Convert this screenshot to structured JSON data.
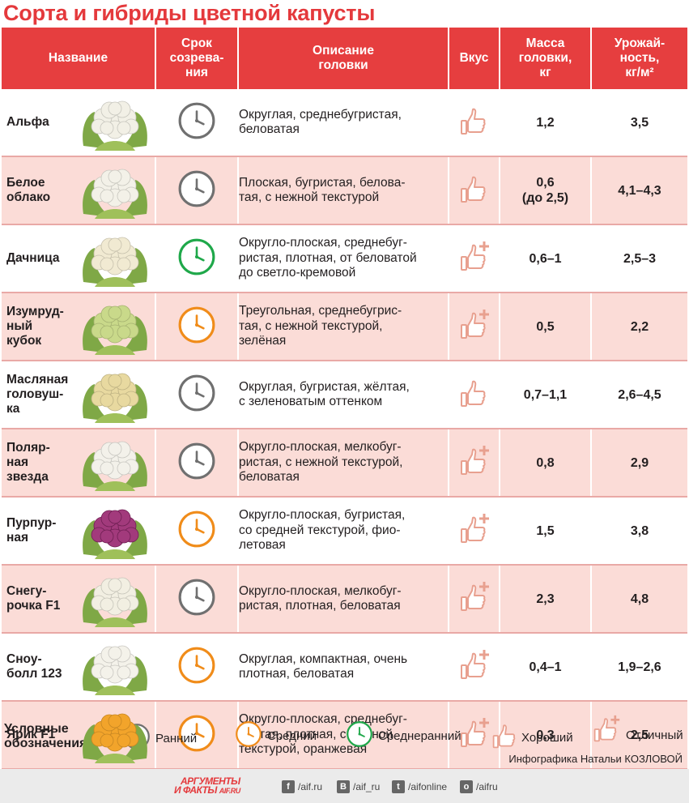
{
  "title": "Сорта и гибриды цветной капусты",
  "headers": {
    "name": "Название",
    "period": "Срок\nсозрева-\nния",
    "desc": "Описание\nголовки",
    "taste": "Вкус",
    "mass": "Масса\nголовки,\nкг",
    "yield": "Урожай-\nность,\nкг/м²"
  },
  "rows": [
    {
      "name": "Альфа",
      "period": "ранний",
      "desc": "Округлая, среднебугристая,\nбеловатая",
      "taste": "хороший",
      "mass": "1,2",
      "yield": "3,5",
      "head_color": "#f2f0e6"
    },
    {
      "name": "Белое\nоблако",
      "period": "ранний",
      "desc": "Плоская, бугристая, белова-\nтая, с нежной текстурой",
      "taste": "хороший",
      "mass": "0,6\n(до 2,5)",
      "yield": "4,1–4,3",
      "head_color": "#f3f1e8"
    },
    {
      "name": "Дачница",
      "period": "среднеранний",
      "desc": "Округло-плоская, среднебуг-\nристая, плотная, от беловатой\nдо светло-кремовой",
      "taste": "отличный",
      "mass": "0,6–1",
      "yield": "2,5–3",
      "head_color": "#f1ead2"
    },
    {
      "name": "Изумруд-\nный\nкубок",
      "period": "средний",
      "desc": "Треугольная, среднебугрис-\nтая, с нежной текстурой,\nзелёная",
      "taste": "отличный",
      "mass": "0,5",
      "yield": "2,2",
      "head_color": "#c9d98a"
    },
    {
      "name": "Масляная\nголовуш-\nка",
      "period": "ранний",
      "desc": "Округлая, бугристая, жёлтая,\nс зеленоватым оттенком",
      "taste": "хороший",
      "mass": "0,7–1,1",
      "yield": "2,6–4,5",
      "head_color": "#e8d9a0"
    },
    {
      "name": "Поляр-\nная\nзвезда",
      "period": "ранний",
      "desc": "Округло-плоская, мелкобуг-\nристая, с нежной текстурой,\nбеловатая",
      "taste": "отличный",
      "mass": "0,8",
      "yield": "2,9",
      "head_color": "#f3f1ea"
    },
    {
      "name": "Пурпур-\nная",
      "period": "средний",
      "desc": "Округло-плоская, бугристая,\nсо средней текстурой, фио-\nлетовая",
      "taste": "отличный",
      "mass": "1,5",
      "yield": "3,8",
      "head_color": "#8c2a6a"
    },
    {
      "name": "Снегу-\nрочка F1",
      "period": "ранний",
      "desc": "Округло-плоская, мелкобуг-\nристая, плотная, беловатая",
      "taste": "отличный",
      "mass": "2,3",
      "yield": "4,8",
      "head_color": "#f2efe2"
    },
    {
      "name": "Сноу-\nболл 123",
      "period": "средний",
      "desc": "Округлая, компактная, очень\nплотная, беловатая",
      "taste": "отличный",
      "mass": "0,4–1",
      "yield": "1,9–2,6",
      "head_color": "#f4f2ea"
    },
    {
      "name": "Ярик F1",
      "period": "средний",
      "desc": "Округло-плоская, среднебуг-\nристая, плотная, с нежной\nтекстурой, оранжевая",
      "taste": "отличный",
      "mass": "0,3",
      "yield": "2,5",
      "head_color": "#f2a42b"
    }
  ],
  "legend": {
    "title": "Условные\nобозначения",
    "early": "Ранний",
    "medium": "Средний",
    "medium_early": "Среднеранний",
    "good": "Хороший",
    "excellent": "Отличный"
  },
  "colors": {
    "accent": "#e63e3f",
    "row_alt": "#fbdcd7",
    "clock_early": "#707070",
    "clock_medium": "#f08c1a",
    "clock_medium_early": "#1fa84a",
    "thumb": "#e8a08f",
    "leaf": "#7fa846"
  },
  "credit": "Инфографика Натальи КОЗЛОВОЙ",
  "footer": {
    "brand_top": "АРГУМЕНТЫ",
    "brand_bottom": "И ФАКТЫ",
    "brand_domain": "AIF.RU",
    "social": [
      {
        "icon": "f",
        "label": "/aif.ru"
      },
      {
        "icon": "В",
        "label": "/aif_ru"
      },
      {
        "icon": "t",
        "label": "/aifonline"
      },
      {
        "icon": "о",
        "label": "/aifru"
      }
    ]
  }
}
